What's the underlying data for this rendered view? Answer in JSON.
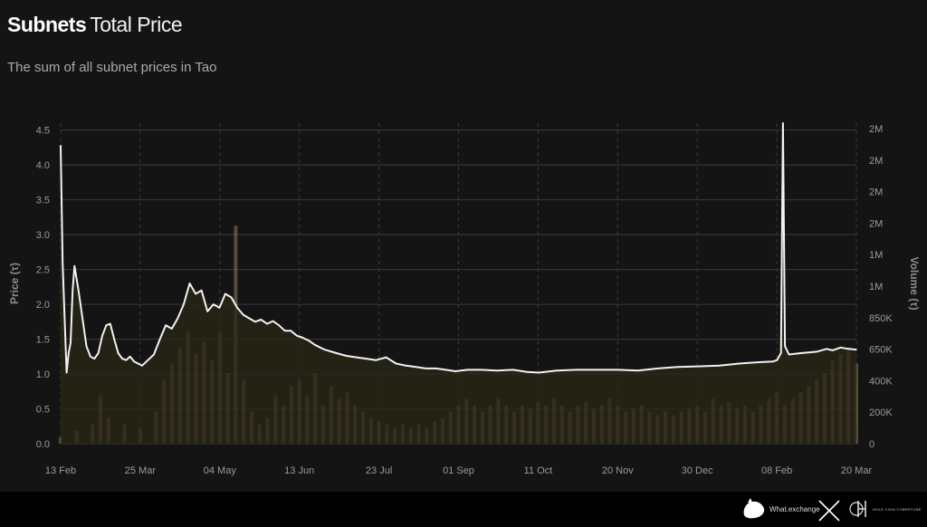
{
  "header": {
    "title_bold": "Subnets",
    "title_rest": "Total Price",
    "subtitle": "The sum of all subnet prices in Tao"
  },
  "footer": {
    "brand_left": "What.exchange",
    "brand_right": "HOLD COIN CYBERTUNE"
  },
  "colors": {
    "background": "#141414",
    "price_line": "#f2f2f2",
    "price_fill": "#2a2516",
    "volume_bar": "#8a7a5c",
    "grid": "#3a3a3a"
  },
  "chart_data": {
    "type": "line",
    "ylabel": "Price (τ)",
    "y2label": "Volume (τ)",
    "ylim": [
      0,
      4.6
    ],
    "y_ticks": [
      "0.0",
      "0.5",
      "1.0",
      "1.5",
      "2.0",
      "2.5",
      "3.0",
      "3.5",
      "4.0",
      "4.5"
    ],
    "y2_ticks": [
      "0",
      "200K",
      "400K",
      "650K",
      "850K",
      "1M",
      "1M",
      "2M",
      "2M",
      "2M",
      "2M"
    ],
    "x_ticks": [
      "13 Feb",
      "25 Mar",
      "04 May",
      "13 Jun",
      "23 Jul",
      "01 Sep",
      "11 Oct",
      "20 Nov",
      "30 Dec",
      "08 Feb",
      "20 Mar"
    ],
    "x_range": [
      "2024-02-13",
      "2025-03-20"
    ],
    "grid": true,
    "series": [
      {
        "name": "Price",
        "points": [
          [
            "2024-02-13",
            4.28
          ],
          [
            "2024-02-14",
            2.6
          ],
          [
            "2024-02-15",
            1.8
          ],
          [
            "2024-02-16",
            1.02
          ],
          [
            "2024-02-17",
            1.3
          ],
          [
            "2024-02-18",
            1.45
          ],
          [
            "2024-02-19",
            2.2
          ],
          [
            "2024-02-20",
            2.55
          ],
          [
            "2024-02-22",
            2.2
          ],
          [
            "2024-02-24",
            1.8
          ],
          [
            "2024-02-26",
            1.4
          ],
          [
            "2024-02-28",
            1.25
          ],
          [
            "2024-03-01",
            1.22
          ],
          [
            "2024-03-03",
            1.3
          ],
          [
            "2024-03-05",
            1.55
          ],
          [
            "2024-03-07",
            1.7
          ],
          [
            "2024-03-09",
            1.72
          ],
          [
            "2024-03-11",
            1.5
          ],
          [
            "2024-03-13",
            1.3
          ],
          [
            "2024-03-15",
            1.22
          ],
          [
            "2024-03-17",
            1.2
          ],
          [
            "2024-03-19",
            1.25
          ],
          [
            "2024-03-21",
            1.18
          ],
          [
            "2024-03-23",
            1.15
          ],
          [
            "2024-03-25",
            1.12
          ],
          [
            "2024-03-28",
            1.2
          ],
          [
            "2024-03-31",
            1.28
          ],
          [
            "2024-04-03",
            1.5
          ],
          [
            "2024-04-06",
            1.7
          ],
          [
            "2024-04-09",
            1.65
          ],
          [
            "2024-04-12",
            1.8
          ],
          [
            "2024-04-15",
            2.0
          ],
          [
            "2024-04-18",
            2.3
          ],
          [
            "2024-04-21",
            2.15
          ],
          [
            "2024-04-24",
            2.2
          ],
          [
            "2024-04-27",
            1.9
          ],
          [
            "2024-04-30",
            2.0
          ],
          [
            "2024-05-03",
            1.95
          ],
          [
            "2024-05-06",
            2.15
          ],
          [
            "2024-05-09",
            2.1
          ],
          [
            "2024-05-12",
            1.95
          ],
          [
            "2024-05-15",
            1.85
          ],
          [
            "2024-05-18",
            1.8
          ],
          [
            "2024-05-21",
            1.75
          ],
          [
            "2024-05-24",
            1.78
          ],
          [
            "2024-05-27",
            1.72
          ],
          [
            "2024-05-30",
            1.76
          ],
          [
            "2024-06-02",
            1.7
          ],
          [
            "2024-06-05",
            1.62
          ],
          [
            "2024-06-08",
            1.62
          ],
          [
            "2024-06-11",
            1.55
          ],
          [
            "2024-06-14",
            1.52
          ],
          [
            "2024-06-17",
            1.48
          ],
          [
            "2024-06-20",
            1.42
          ],
          [
            "2024-06-25",
            1.35
          ],
          [
            "2024-07-01",
            1.3
          ],
          [
            "2024-07-06",
            1.26
          ],
          [
            "2024-07-11",
            1.24
          ],
          [
            "2024-07-16",
            1.22
          ],
          [
            "2024-07-21",
            1.2
          ],
          [
            "2024-07-26",
            1.24
          ],
          [
            "2024-07-31",
            1.15
          ],
          [
            "2024-08-05",
            1.12
          ],
          [
            "2024-08-10",
            1.1
          ],
          [
            "2024-08-15",
            1.08
          ],
          [
            "2024-08-20",
            1.08
          ],
          [
            "2024-08-25",
            1.06
          ],
          [
            "2024-08-30",
            1.04
          ],
          [
            "2024-09-05",
            1.06
          ],
          [
            "2024-09-12",
            1.06
          ],
          [
            "2024-09-20",
            1.05
          ],
          [
            "2024-09-28",
            1.06
          ],
          [
            "2024-10-05",
            1.03
          ],
          [
            "2024-10-11",
            1.02
          ],
          [
            "2024-10-20",
            1.05
          ],
          [
            "2024-10-30",
            1.06
          ],
          [
            "2024-11-10",
            1.06
          ],
          [
            "2024-11-20",
            1.06
          ],
          [
            "2024-11-30",
            1.05
          ],
          [
            "2024-12-10",
            1.08
          ],
          [
            "2024-12-20",
            1.1
          ],
          [
            "2024-12-30",
            1.11
          ],
          [
            "2025-01-10",
            1.12
          ],
          [
            "2025-01-20",
            1.15
          ],
          [
            "2025-01-30",
            1.17
          ],
          [
            "2025-02-06",
            1.18
          ],
          [
            "2025-02-08",
            1.2
          ],
          [
            "2025-02-10",
            1.3
          ],
          [
            "2025-02-11",
            4.6
          ],
          [
            "2025-02-12",
            1.4
          ],
          [
            "2025-02-14",
            1.28
          ],
          [
            "2025-02-20",
            1.3
          ],
          [
            "2025-02-28",
            1.32
          ],
          [
            "2025-03-05",
            1.36
          ],
          [
            "2025-03-08",
            1.34
          ],
          [
            "2025-03-12",
            1.38
          ],
          [
            "2025-03-16",
            1.36
          ],
          [
            "2025-03-20",
            1.35
          ]
        ]
      },
      {
        "name": "Volume",
        "axis": "right",
        "note_levels_as_fraction_of_plot": true,
        "levels": [
          [
            0.0,
            0.02
          ],
          [
            0.02,
            0.04
          ],
          [
            0.04,
            0.06
          ],
          [
            0.05,
            0.15
          ],
          [
            0.06,
            0.08
          ],
          [
            0.08,
            0.06
          ],
          [
            0.1,
            0.05
          ],
          [
            0.12,
            0.1
          ],
          [
            0.13,
            0.2
          ],
          [
            0.14,
            0.25
          ],
          [
            0.15,
            0.3
          ],
          [
            0.16,
            0.35
          ],
          [
            0.17,
            0.28
          ],
          [
            0.18,
            0.32
          ],
          [
            0.19,
            0.26
          ],
          [
            0.2,
            0.35
          ],
          [
            0.21,
            0.22
          ],
          [
            0.22,
            0.68
          ],
          [
            0.23,
            0.2
          ],
          [
            0.24,
            0.1
          ],
          [
            0.25,
            0.06
          ],
          [
            0.26,
            0.08
          ],
          [
            0.27,
            0.15
          ],
          [
            0.28,
            0.12
          ],
          [
            0.29,
            0.18
          ],
          [
            0.3,
            0.2
          ],
          [
            0.31,
            0.15
          ],
          [
            0.32,
            0.22
          ],
          [
            0.33,
            0.12
          ],
          [
            0.34,
            0.18
          ],
          [
            0.35,
            0.14
          ],
          [
            0.36,
            0.16
          ],
          [
            0.37,
            0.12
          ],
          [
            0.38,
            0.1
          ],
          [
            0.39,
            0.08
          ],
          [
            0.4,
            0.07
          ],
          [
            0.41,
            0.06
          ],
          [
            0.42,
            0.05
          ],
          [
            0.43,
            0.06
          ],
          [
            0.44,
            0.05
          ],
          [
            0.45,
            0.06
          ],
          [
            0.46,
            0.05
          ],
          [
            0.47,
            0.07
          ],
          [
            0.48,
            0.08
          ],
          [
            0.49,
            0.1
          ],
          [
            0.5,
            0.12
          ],
          [
            0.51,
            0.14
          ],
          [
            0.52,
            0.12
          ],
          [
            0.53,
            0.1
          ],
          [
            0.54,
            0.12
          ],
          [
            0.55,
            0.14
          ],
          [
            0.56,
            0.12
          ],
          [
            0.57,
            0.1
          ],
          [
            0.58,
            0.12
          ],
          [
            0.59,
            0.11
          ],
          [
            0.6,
            0.13
          ],
          [
            0.61,
            0.12
          ],
          [
            0.62,
            0.14
          ],
          [
            0.63,
            0.12
          ],
          [
            0.64,
            0.1
          ],
          [
            0.65,
            0.12
          ],
          [
            0.66,
            0.13
          ],
          [
            0.67,
            0.11
          ],
          [
            0.68,
            0.12
          ],
          [
            0.69,
            0.14
          ],
          [
            0.7,
            0.12
          ],
          [
            0.71,
            0.1
          ],
          [
            0.72,
            0.11
          ],
          [
            0.73,
            0.12
          ],
          [
            0.74,
            0.1
          ],
          [
            0.75,
            0.09
          ],
          [
            0.76,
            0.1
          ],
          [
            0.77,
            0.09
          ],
          [
            0.78,
            0.1
          ],
          [
            0.79,
            0.11
          ],
          [
            0.8,
            0.12
          ],
          [
            0.81,
            0.1
          ],
          [
            0.82,
            0.14
          ],
          [
            0.83,
            0.12
          ],
          [
            0.84,
            0.13
          ],
          [
            0.85,
            0.11
          ],
          [
            0.86,
            0.12
          ],
          [
            0.87,
            0.1
          ],
          [
            0.88,
            0.12
          ],
          [
            0.89,
            0.14
          ],
          [
            0.9,
            0.16
          ],
          [
            0.91,
            0.12
          ],
          [
            0.92,
            0.14
          ],
          [
            0.93,
            0.16
          ],
          [
            0.94,
            0.18
          ],
          [
            0.95,
            0.2
          ],
          [
            0.96,
            0.22
          ],
          [
            0.97,
            0.26
          ],
          [
            0.98,
            0.28
          ],
          [
            0.99,
            0.3
          ],
          [
            1.0,
            0.25
          ]
        ]
      }
    ]
  }
}
